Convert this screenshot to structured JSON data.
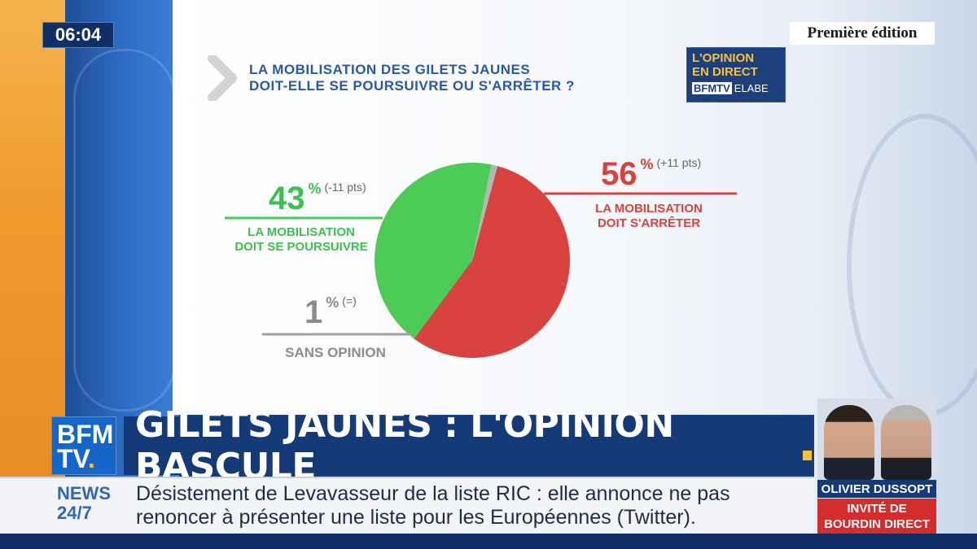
{
  "overlay": {
    "clock": "06:04",
    "edition": "Première édition",
    "question_line1": "LA MOBILISATION DES GILETS JAUNES",
    "question_line2": "DOIT-ELLE SE POURSUIVRE OU S'ARRÊTER ?",
    "badge_line1": "L'OPINION",
    "badge_line2": "EN DIRECT",
    "badge_brand1": "BFMTV",
    "badge_brand2": "ELABE"
  },
  "chart_data": {
    "type": "pie",
    "categories": [
      "LA MOBILISATION DOIT S'ARRÊTER",
      "LA MOBILISATION DOIT SE POURSUIVRE",
      "SANS OPINION"
    ],
    "values": [
      56,
      43,
      1
    ],
    "unit": "%",
    "changes": [
      "(+11 pts)",
      "(-11 pts)",
      "(=)"
    ],
    "colors": [
      "#d8423f",
      "#4ccb57",
      "#b5b5b5"
    ],
    "title": "LA MOBILISATION DES GILETS JAUNES DOIT-ELLE SE POURSUIVRE OU S'ARRÊTER ?"
  },
  "labels": {
    "stop_value": "56",
    "stop_pct": "%",
    "stop_change": "(+11 pts)",
    "stop_line1": "LA MOBILISATION",
    "stop_line2": "DOIT S'ARRÊTER",
    "continue_value": "43",
    "continue_pct": "%",
    "continue_change": "(-11 pts)",
    "continue_line1": "LA MOBILISATION",
    "continue_line2": "DOIT SE POURSUIVRE",
    "none_value": "1",
    "none_pct": "%",
    "none_change": "(=)",
    "none_line1": "SANS OPINION"
  },
  "banner": {
    "logo_line1": "BFM",
    "logo_line2": "TV",
    "headline": "GILETS JAUNES : L'OPINION BASCULE",
    "news_line1": "NEWS",
    "news_line2": "24/7",
    "ticker_line1": "Désistement de Levavasseur de la liste RIC : elle annonce ne pas",
    "ticker_line2": "renoncer à présenter une liste pour les Européennes (Twitter).",
    "guest_name": "OLIVIER DUSSOPT",
    "guest_show_line1": "INVITÉ DE",
    "guest_show_line2": "BOURDIN DIRECT"
  }
}
